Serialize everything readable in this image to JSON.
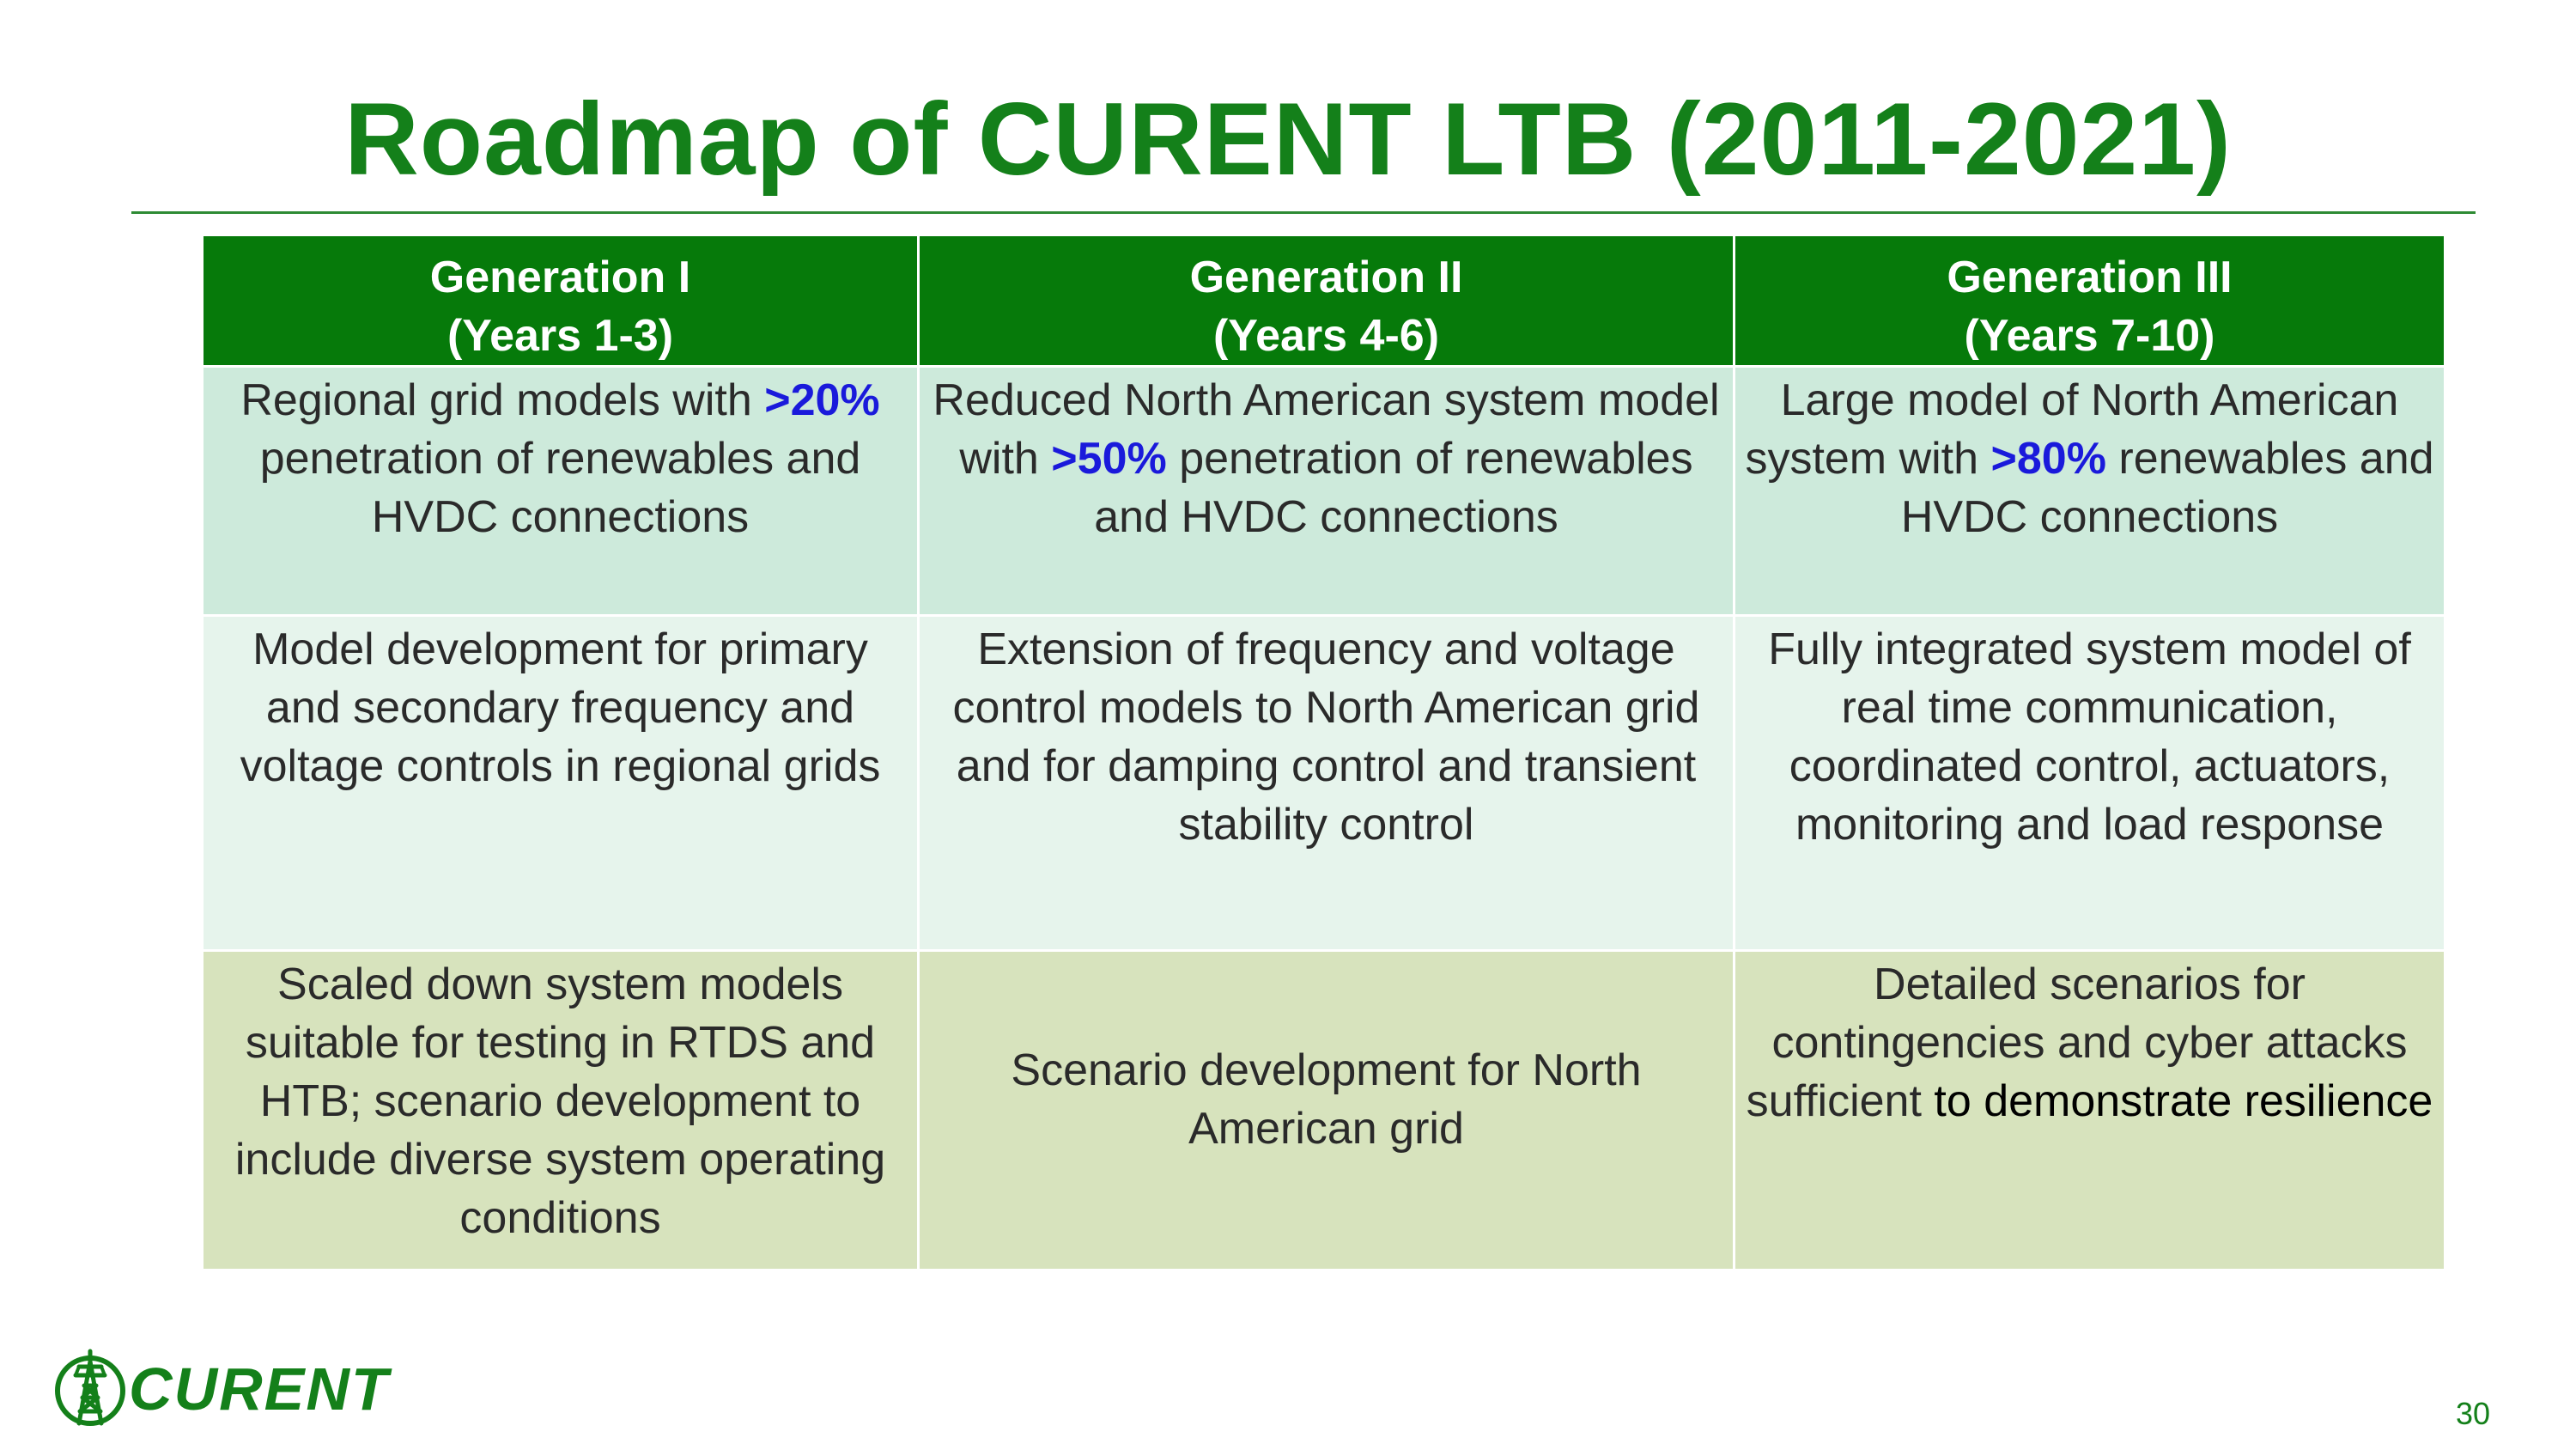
{
  "title": "Roadmap of CURENT LTB (2011-2021)",
  "table": {
    "headers": [
      {
        "line1": "Generation I",
        "line2": "(Years 1-3)"
      },
      {
        "line1": "Generation II",
        "line2": "(Years 4-6)"
      },
      {
        "line1": "Generation III",
        "line2": "(Years 7-10)"
      }
    ],
    "row1": [
      {
        "pre": "Regional grid models with ",
        "highlight": ">20%",
        "post": " penetration of renewables and HVDC connections"
      },
      {
        "pre": "Reduced North American system model with ",
        "highlight": ">50%",
        "post": " penetration of renewables and HVDC connections"
      },
      {
        "pre": "Large model of North American system with ",
        "highlight": ">80%",
        "post": " renewables and HVDC connections"
      }
    ],
    "row2": [
      "Model development for primary and secondary frequency and voltage controls in regional grids",
      "Extension of frequency and voltage control models to North American grid and for damping control and transient stability control",
      "Fully integrated system model of real time communication, coordinated control, actuators, monitoring and load response"
    ],
    "row3": [
      "Scaled down system models suitable for testing in RTDS and HTB; scenario development to include diverse system operating conditions",
      "Scenario development for North American grid",
      {
        "pre": "Detailed scenarios for contingencies and cyber attacks sufficient ",
        "dark": "to demonstrate resilience"
      }
    ]
  },
  "logo": {
    "text": "CURENT",
    "icon": "transmission-tower-icon"
  },
  "page_number": "30",
  "colors": {
    "title": "#14801a",
    "header_bg": "#067a0a",
    "row1_bg": "#cdeadb",
    "row2_bg": "#e6f4ec",
    "row3_bg": "#d7e3bd",
    "highlight": "#1a1adb"
  }
}
